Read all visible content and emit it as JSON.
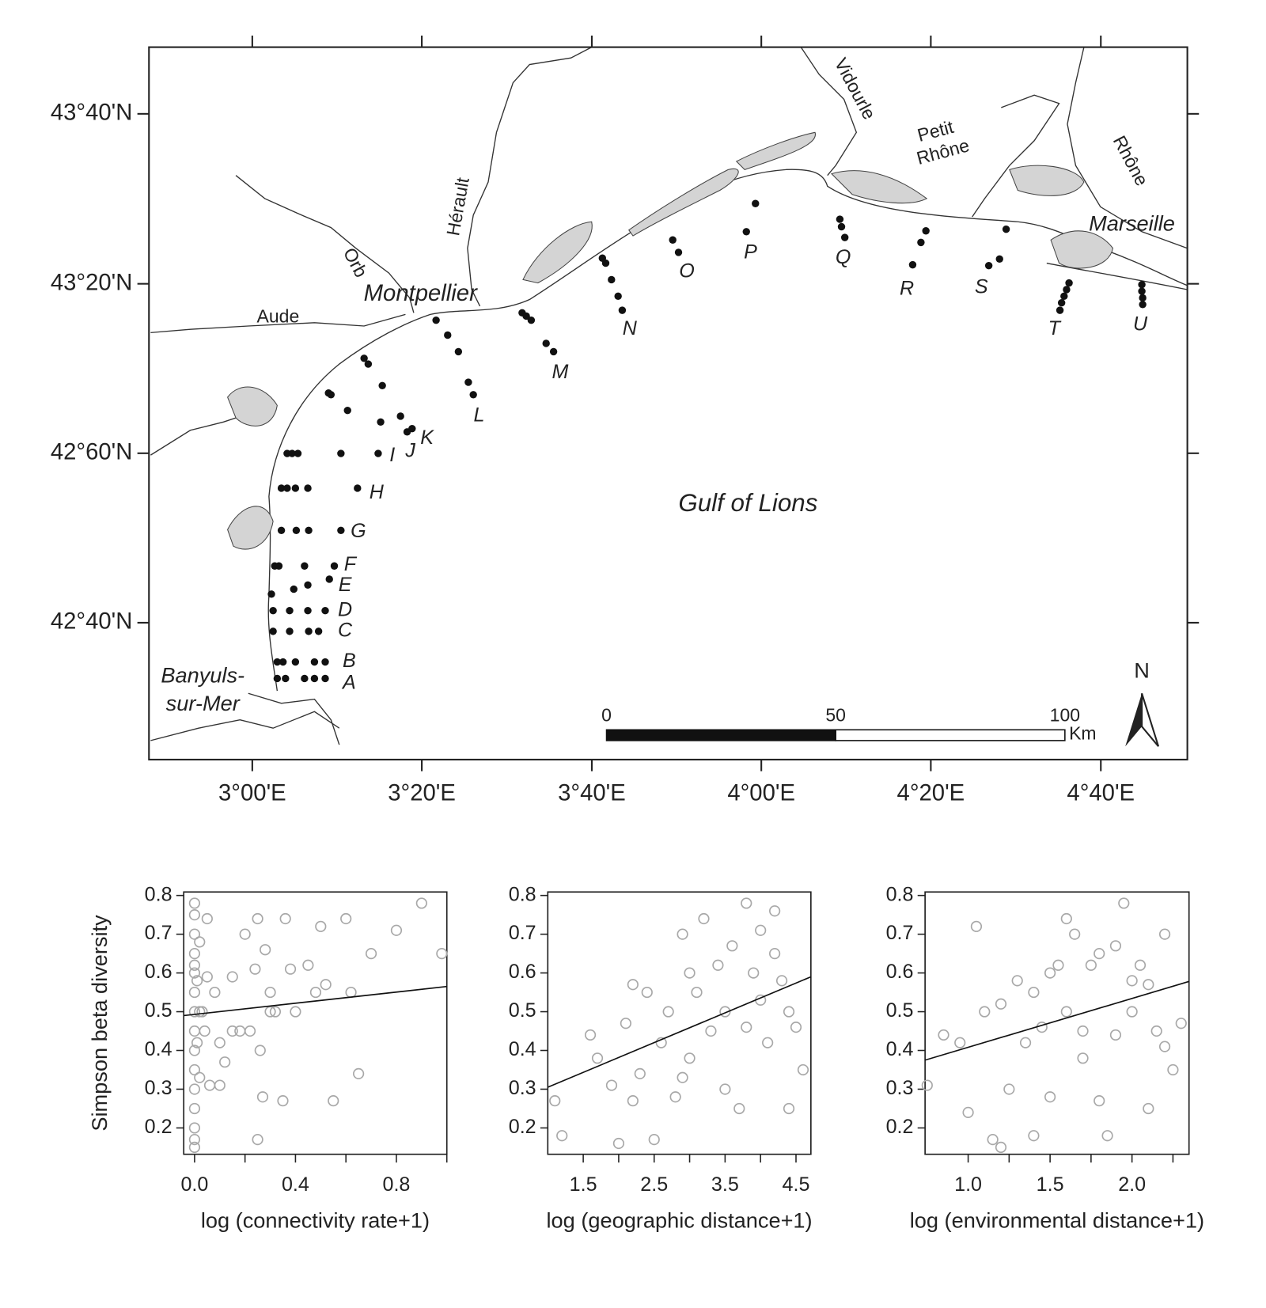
{
  "map": {
    "lonlim": [
      2.797,
      4.837
    ],
    "latlim": [
      42.398,
      43.798
    ],
    "lon_ticks": [
      {
        "value": 3,
        "label": "3°00'E"
      },
      {
        "value": 3.333,
        "label": "3°20'E"
      },
      {
        "value": 3.667,
        "label": "3°40'E"
      },
      {
        "value": 4,
        "label": "4°00'E"
      },
      {
        "value": 4.333,
        "label": "4°20'E"
      },
      {
        "value": 4.667,
        "label": "4°40'E"
      }
    ],
    "lat_ticks": [
      {
        "value": 43.667,
        "label": "43°40'N"
      },
      {
        "value": 43.333,
        "label": "43°20'N"
      },
      {
        "value": 43,
        "label": "42°60'N"
      },
      {
        "value": 42.667,
        "label": "42°40'N"
      }
    ],
    "stations": [
      "A",
      "B",
      "C",
      "D",
      "E",
      "F",
      "G",
      "H",
      "I",
      "J",
      "K",
      "L",
      "M",
      "N",
      "O",
      "P",
      "Q",
      "R",
      "S",
      "T",
      "U"
    ],
    "places": [
      "Montpellier",
      "Aude",
      "Orb",
      "Hérault",
      "Vidourle",
      "Petit",
      "Rhône",
      "Rhône",
      "Marseille",
      "Banyuls-",
      "sur-Mer"
    ],
    "sea": "Gulf of Lions",
    "scale_bar": {
      "ticks": [
        0,
        50,
        100
      ],
      "unit": "Km"
    },
    "north": "N"
  },
  "chart_data": [
    {
      "type": "scatter",
      "xlabel": "log (connectivity rate+1)",
      "ylabel": "Simpson beta diversity",
      "color": "#a8a8a8",
      "xlim": [
        -0.043,
        1.0
      ],
      "ylim": [
        0.132,
        0.809
      ],
      "xticks": [
        {
          "value": 0,
          "label": "0.0"
        },
        0.4,
        0.8
      ],
      "minor_xticks": [
        0.2,
        0.6,
        1.0
      ],
      "yticks": [
        0.2,
        0.3,
        0.4,
        0.5,
        0.6,
        0.7,
        0.8
      ],
      "x": [
        0,
        0,
        0,
        0,
        0,
        0,
        0,
        0,
        0,
        0,
        0,
        0,
        0,
        0,
        0,
        0,
        0.01,
        0.01,
        0.02,
        0.02,
        0.03,
        0.04,
        0.05,
        0.06,
        0.08,
        0.1,
        0.12,
        0.15,
        0.18,
        0.2,
        0.22,
        0.24,
        0.25,
        0.26,
        0.27,
        0.28,
        0.3,
        0.32,
        0.35,
        0.36,
        0.38,
        0.4,
        0.45,
        0.48,
        0.5,
        0.52,
        0.55,
        0.6,
        0.62,
        0.65,
        0.7,
        0.8,
        0.9,
        0.98,
        0.25,
        0.05,
        0.1,
        0.3,
        0.15,
        0.02
      ],
      "values": [
        0.78,
        0.75,
        0.7,
        0.65,
        0.6,
        0.55,
        0.5,
        0.45,
        0.4,
        0.35,
        0.3,
        0.25,
        0.2,
        0.17,
        0.15,
        0.62,
        0.58,
        0.42,
        0.68,
        0.33,
        0.5,
        0.45,
        0.74,
        0.31,
        0.55,
        0.42,
        0.37,
        0.59,
        0.45,
        0.7,
        0.45,
        0.61,
        0.74,
        0.4,
        0.28,
        0.66,
        0.5,
        0.5,
        0.27,
        0.74,
        0.61,
        0.5,
        0.62,
        0.55,
        0.72,
        0.57,
        0.27,
        0.74,
        0.55,
        0.34,
        0.65,
        0.71,
        0.78,
        0.65,
        0.17,
        0.59,
        0.31,
        0.55,
        0.45,
        0.5
      ],
      "trend": {
        "x": [
          -0.043,
          1.0
        ],
        "y": [
          0.49,
          0.565
        ]
      }
    },
    {
      "type": "scatter",
      "xlabel": "log (geographic distance+1)",
      "color": "#a8a8a8",
      "xlim": [
        1.0,
        4.71
      ],
      "ylim": [
        0.132,
        0.809
      ],
      "xticks": [
        1.5,
        2.5,
        3.5,
        4.5
      ],
      "minor_xticks": [
        2.0,
        3.0,
        4.0
      ],
      "yticks": [
        0.2,
        0.3,
        0.4,
        0.5,
        0.6,
        0.7,
        0.8
      ],
      "x": [
        1.1,
        1.2,
        1.6,
        1.7,
        1.9,
        2.0,
        2.1,
        2.2,
        2.3,
        2.4,
        2.5,
        2.6,
        2.7,
        2.8,
        2.9,
        3.0,
        3.1,
        3.2,
        3.3,
        3.4,
        3.5,
        3.6,
        3.7,
        3.8,
        3.9,
        4.0,
        4.1,
        4.2,
        4.3,
        4.4,
        4.5,
        4.6,
        3.0,
        3.5,
        4.0,
        4.4,
        2.2,
        2.9,
        3.8,
        4.2
      ],
      "values": [
        0.27,
        0.18,
        0.44,
        0.38,
        0.31,
        0.16,
        0.47,
        0.57,
        0.34,
        0.55,
        0.17,
        0.42,
        0.5,
        0.28,
        0.7,
        0.38,
        0.55,
        0.74,
        0.45,
        0.62,
        0.5,
        0.67,
        0.25,
        0.78,
        0.6,
        0.71,
        0.42,
        0.76,
        0.58,
        0.25,
        0.46,
        0.35,
        0.6,
        0.3,
        0.53,
        0.5,
        0.27,
        0.33,
        0.46,
        0.65
      ],
      "trend": {
        "x": [
          1.0,
          4.71
        ],
        "y": [
          0.305,
          0.59
        ]
      }
    },
    {
      "type": "scatter",
      "xlabel": "log (environmental distance+1)",
      "color": "#a8a8a8",
      "xlim": [
        0.737,
        2.348
      ],
      "ylim": [
        0.132,
        0.809
      ],
      "xticks": [
        {
          "value": 1.0,
          "label": "1.0"
        },
        1.5,
        {
          "value": 2.0,
          "label": "2.0"
        }
      ],
      "minor_xticks": [
        1.25,
        1.75,
        2.25
      ],
      "yticks": [
        0.2,
        0.3,
        0.4,
        0.5,
        0.6,
        0.7,
        0.8
      ],
      "x": [
        0.75,
        0.85,
        0.95,
        1.0,
        1.05,
        1.1,
        1.15,
        1.2,
        1.25,
        1.3,
        1.35,
        1.4,
        1.45,
        1.5,
        1.55,
        1.6,
        1.65,
        1.7,
        1.75,
        1.8,
        1.85,
        1.9,
        1.95,
        2.0,
        2.05,
        2.1,
        2.15,
        2.2,
        2.25,
        2.3,
        1.4,
        1.6,
        1.8,
        2.0,
        1.2,
        1.5,
        1.7,
        1.9,
        2.1,
        2.2
      ],
      "values": [
        0.31,
        0.44,
        0.42,
        0.24,
        0.72,
        0.5,
        0.17,
        0.15,
        0.3,
        0.58,
        0.42,
        0.18,
        0.46,
        0.28,
        0.62,
        0.74,
        0.7,
        0.38,
        0.62,
        0.27,
        0.18,
        0.67,
        0.78,
        0.5,
        0.62,
        0.25,
        0.45,
        0.41,
        0.35,
        0.47,
        0.55,
        0.5,
        0.65,
        0.58,
        0.52,
        0.6,
        0.45,
        0.44,
        0.57,
        0.7
      ],
      "trend": {
        "x": [
          0.737,
          2.348
        ],
        "y": [
          0.375,
          0.578
        ]
      }
    }
  ]
}
